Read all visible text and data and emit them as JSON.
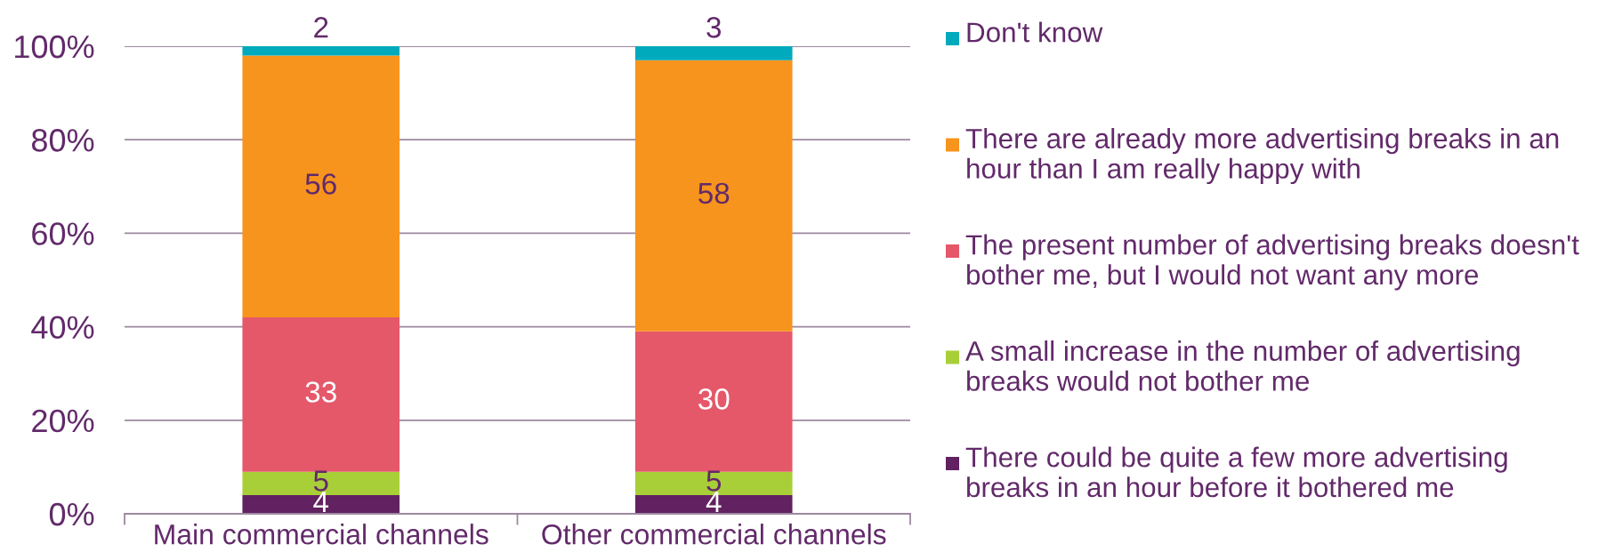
{
  "chart_data": {
    "type": "bar",
    "stacked": true,
    "categories": [
      "Main commercial channels",
      "Other commercial channels"
    ],
    "series": [
      {
        "name": "There could be quite a few more advertising breaks in an hour before it bothered me",
        "color": "#622161",
        "values": [
          4,
          4
        ]
      },
      {
        "name": "A small increase in the number of advertising breaks would not bother me",
        "color": "#a8cf38",
        "values": [
          5,
          5
        ]
      },
      {
        "name": "The present number of advertising breaks doesn't bother me, but I would not want any more",
        "color": "#e5586a",
        "values": [
          33,
          30
        ]
      },
      {
        "name": "There are already more advertising breaks in an hour than I am really happy with",
        "color": "#f7941d",
        "values": [
          56,
          58
        ]
      },
      {
        "name": "Don't know",
        "color": "#00aabd",
        "values": [
          2,
          3
        ]
      }
    ],
    "ylim": [
      0,
      100
    ],
    "yticks": [
      {
        "value": 0,
        "label": "0%"
      },
      {
        "value": 20,
        "label": "20%"
      },
      {
        "value": 40,
        "label": "40%"
      },
      {
        "value": 60,
        "label": "60%"
      },
      {
        "value": 80,
        "label": "80%"
      },
      {
        "value": 100,
        "label": "100%"
      }
    ],
    "grid": "y",
    "legend": "right",
    "data_labels": true
  }
}
